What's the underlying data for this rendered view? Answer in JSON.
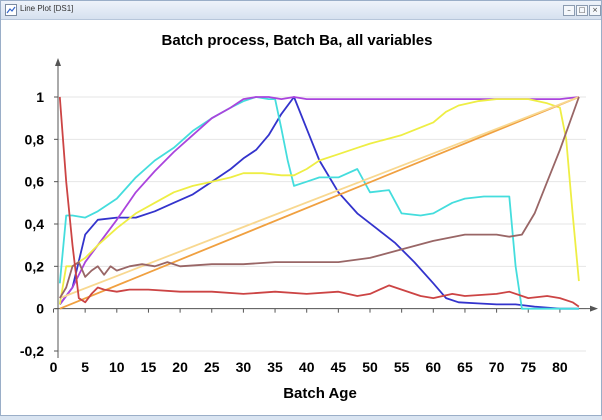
{
  "window": {
    "title": "Line Plot [DS1]",
    "buttons": [
      {
        "name": "minimize-button",
        "icon": "minimize-icon",
        "glyph": "–"
      },
      {
        "name": "maximize-button",
        "icon": "maximize-icon",
        "glyph": "□"
      },
      {
        "name": "close-button",
        "icon": "close-icon",
        "glyph": "×"
      }
    ]
  },
  "chart_data": {
    "type": "line",
    "title": "Batch process, Batch Ba, all variables",
    "xlabel": "Batch Age",
    "ylabel": "",
    "xlim": [
      0,
      85
    ],
    "ylim": [
      -0.2,
      1.1
    ],
    "xticks": [
      0,
      5,
      10,
      15,
      20,
      25,
      30,
      35,
      40,
      45,
      50,
      55,
      60,
      65,
      70,
      75,
      80
    ],
    "yticks": [
      -0.2,
      0,
      0.2,
      0.4,
      0.6,
      0.8,
      1
    ],
    "ytick_labels": [
      "-0,2",
      "0",
      "0,2",
      "0,4",
      "0,6",
      "0,8",
      "1"
    ],
    "grid": true,
    "legend": "none",
    "series": [
      {
        "color": "#3333cc",
        "x": [
          1,
          3,
          5,
          7,
          10,
          13,
          16,
          19,
          22,
          25,
          28,
          30,
          32,
          34,
          36,
          38,
          40,
          42,
          45,
          48,
          51,
          54,
          57,
          60,
          62,
          64,
          67,
          70,
          73,
          76,
          80,
          83
        ],
        "y": [
          0.02,
          0.1,
          0.35,
          0.42,
          0.43,
          0.43,
          0.46,
          0.5,
          0.54,
          0.6,
          0.66,
          0.71,
          0.75,
          0.82,
          0.92,
          1.0,
          0.85,
          0.7,
          0.55,
          0.45,
          0.38,
          0.31,
          0.22,
          0.12,
          0.05,
          0.03,
          0.025,
          0.02,
          0.02,
          0.01,
          0.0,
          0.0
        ]
      },
      {
        "color": "#44dddd",
        "x": [
          1,
          2,
          3,
          5,
          7,
          10,
          13,
          16,
          19,
          22,
          25,
          28,
          30,
          32,
          34,
          35,
          36,
          37,
          38,
          40,
          42,
          45,
          48,
          50,
          53,
          55,
          58,
          60,
          63,
          65,
          68,
          70,
          72,
          73,
          74,
          76,
          80,
          83
        ],
        "y": [
          0.12,
          0.44,
          0.44,
          0.43,
          0.46,
          0.52,
          0.62,
          0.7,
          0.76,
          0.84,
          0.9,
          0.95,
          0.98,
          1.0,
          0.99,
          0.99,
          0.85,
          0.7,
          0.58,
          0.6,
          0.62,
          0.62,
          0.66,
          0.55,
          0.56,
          0.45,
          0.44,
          0.45,
          0.5,
          0.52,
          0.53,
          0.53,
          0.53,
          0.2,
          0.0,
          0.0,
          0.0,
          0.0
        ]
      },
      {
        "color": "#aa44dd",
        "x": [
          1,
          3,
          5,
          7,
          10,
          13,
          16,
          19,
          22,
          25,
          28,
          30,
          32,
          34,
          36,
          38,
          40,
          45,
          50,
          55,
          60,
          65,
          70,
          75,
          80,
          83
        ],
        "y": [
          0.02,
          0.1,
          0.22,
          0.3,
          0.42,
          0.55,
          0.65,
          0.74,
          0.82,
          0.9,
          0.95,
          0.99,
          1.0,
          1.0,
          0.99,
          1.0,
          0.99,
          0.99,
          0.99,
          0.99,
          0.99,
          0.99,
          0.99,
          0.99,
          0.99,
          1.0
        ]
      },
      {
        "color": "#eeee44",
        "x": [
          1,
          2,
          3,
          5,
          7,
          10,
          13,
          16,
          19,
          22,
          25,
          28,
          30,
          33,
          36,
          38,
          40,
          42,
          45,
          48,
          50,
          55,
          60,
          62,
          64,
          67,
          70,
          73,
          75,
          78,
          80,
          81,
          82,
          83
        ],
        "y": [
          0.02,
          0.2,
          0.2,
          0.24,
          0.3,
          0.38,
          0.45,
          0.5,
          0.55,
          0.58,
          0.6,
          0.62,
          0.64,
          0.64,
          0.63,
          0.63,
          0.66,
          0.7,
          0.73,
          0.76,
          0.78,
          0.82,
          0.88,
          0.93,
          0.96,
          0.98,
          0.99,
          0.99,
          0.99,
          0.97,
          0.95,
          0.8,
          0.45,
          0.13
        ]
      },
      {
        "color": "#f0a040",
        "x": [
          1,
          83
        ],
        "y": [
          0.0,
          1.0
        ]
      },
      {
        "color": "#f8d890",
        "x": [
          1,
          83
        ],
        "y": [
          0.05,
          1.0
        ]
      },
      {
        "color": "#996666",
        "x": [
          1,
          2,
          3,
          4,
          5,
          6,
          7,
          8,
          9,
          10,
          12,
          14,
          16,
          18,
          20,
          25,
          30,
          35,
          40,
          45,
          50,
          55,
          60,
          65,
          70,
          72,
          74,
          76,
          78,
          80,
          83
        ],
        "y": [
          0.05,
          0.1,
          0.2,
          0.22,
          0.15,
          0.18,
          0.2,
          0.16,
          0.2,
          0.18,
          0.2,
          0.21,
          0.2,
          0.22,
          0.2,
          0.21,
          0.21,
          0.22,
          0.22,
          0.22,
          0.24,
          0.28,
          0.32,
          0.35,
          0.35,
          0.34,
          0.35,
          0.45,
          0.6,
          0.75,
          1.0
        ]
      },
      {
        "color": "#cc4444",
        "x": [
          1,
          2,
          3,
          4,
          5,
          6,
          7,
          8,
          10,
          12,
          15,
          20,
          25,
          30,
          35,
          40,
          45,
          48,
          50,
          53,
          55,
          58,
          60,
          63,
          65,
          70,
          72,
          75,
          78,
          80,
          82,
          83
        ],
        "y": [
          1.0,
          0.6,
          0.3,
          0.05,
          0.03,
          0.07,
          0.1,
          0.09,
          0.08,
          0.09,
          0.09,
          0.08,
          0.08,
          0.07,
          0.08,
          0.07,
          0.08,
          0.06,
          0.07,
          0.11,
          0.09,
          0.06,
          0.05,
          0.07,
          0.06,
          0.07,
          0.08,
          0.05,
          0.06,
          0.05,
          0.03,
          0.01
        ]
      }
    ]
  }
}
